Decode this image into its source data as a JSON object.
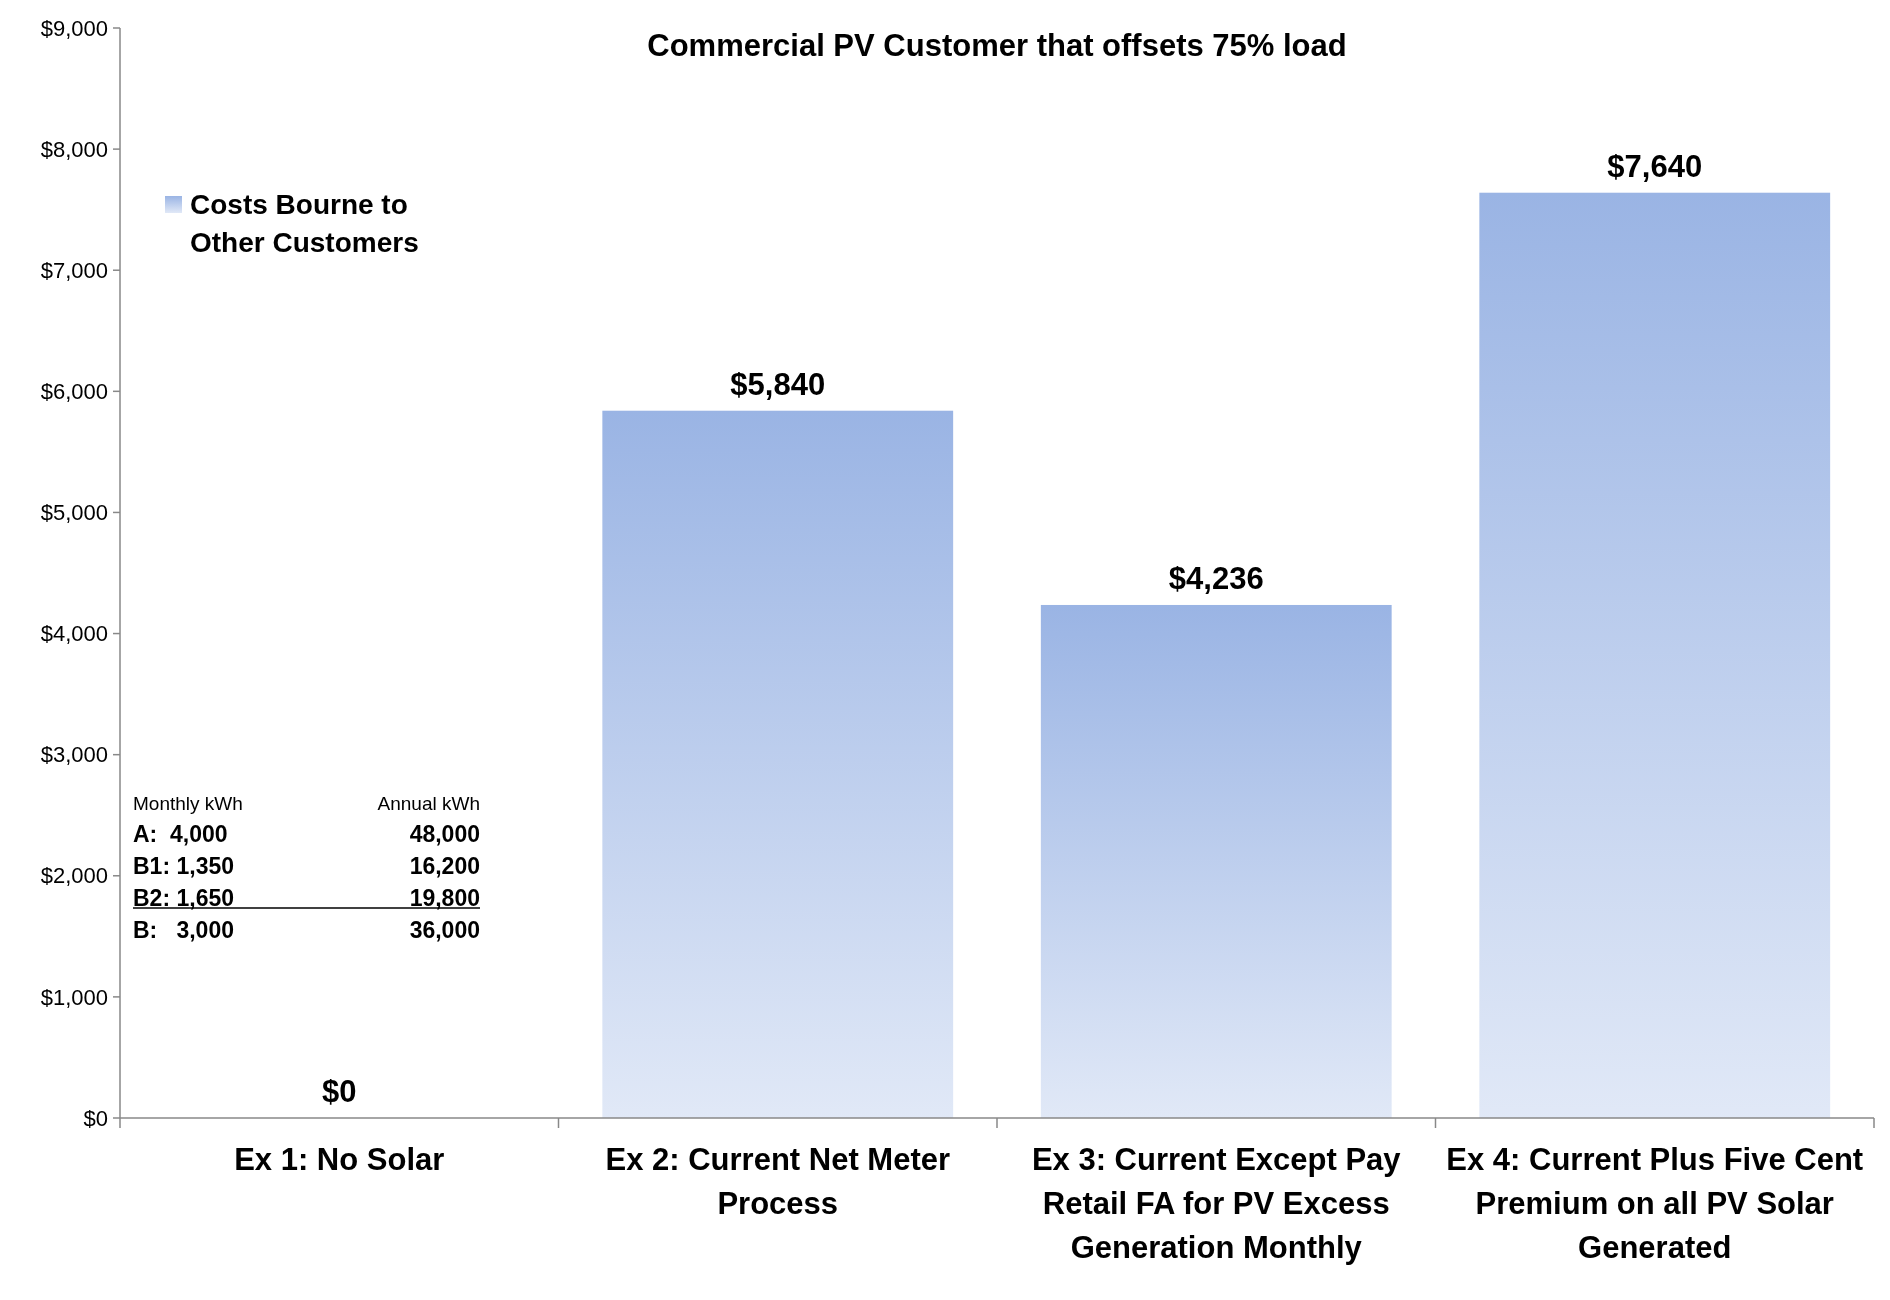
{
  "chart_data": {
    "type": "bar",
    "title": "Commercial PV Customer that offsets 75% load",
    "categories": [
      "Ex 1: No Solar",
      "Ex 2: Current Net Meter Process",
      "Ex 3: Current Except Pay Retail FA for PV Excess Generation Monthly",
      "Ex 4: Current Plus Five Cent Premium on all PV Solar Generated"
    ],
    "series": [
      {
        "name": "Costs Bourne to Other Customers",
        "color": "#9ab4e4",
        "values": [
          0,
          5840,
          4236,
          7640
        ],
        "value_labels": [
          "$0",
          "$5,840",
          "$4,236",
          "$7,640"
        ]
      }
    ],
    "ylim": [
      0,
      9000
    ],
    "yticks": [
      {
        "value": 0,
        "label": "$0"
      },
      {
        "value": 1000,
        "label": "$1,000"
      },
      {
        "value": 2000,
        "label": "$2,000"
      },
      {
        "value": 3000,
        "label": "$3,000"
      },
      {
        "value": 4000,
        "label": "$4,000"
      },
      {
        "value": 5000,
        "label": "$5,000"
      },
      {
        "value": 6000,
        "label": "$6,000"
      },
      {
        "value": 7000,
        "label": "$7,000"
      },
      {
        "value": 8000,
        "label": "$8,000"
      },
      {
        "value": 9000,
        "label": "$9,000"
      }
    ],
    "grid": false,
    "legend": "top left",
    "annotations": [
      "Monthly kWh",
      "Annual kWh",
      "A:  4,000",
      "48,000",
      "B1: 1,350",
      "16,200",
      "B2: 1,650",
      "19,800",
      "B:   3,000",
      "36,000"
    ]
  }
}
